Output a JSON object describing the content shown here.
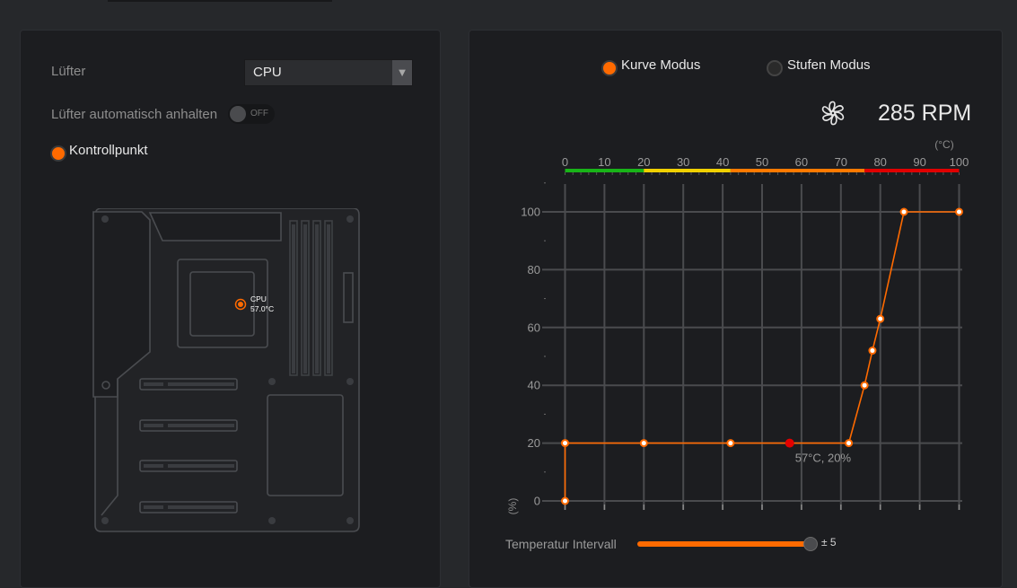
{
  "left": {
    "fan_label": "Lüfter",
    "fan_select_value": "CPU",
    "autostop_label": "Lüfter automatisch anhalten",
    "autostop_state": "OFF",
    "checkpoint_label": "Kontrollpunkt",
    "sensor": {
      "name": "CPU",
      "temp": "57.0°C"
    }
  },
  "right": {
    "mode_curve": "Kurve Modus",
    "mode_step": "Stufen Modus",
    "selected_mode": "Kurve Modus",
    "rpm": "285 RPM",
    "interval_label": "Temperatur Intervall",
    "interval_value": "± 5"
  },
  "chart_data": {
    "type": "line",
    "x_unit": "(°C)",
    "y_unit": "(%)",
    "xlim": [
      0,
      100
    ],
    "ylim": [
      0,
      100
    ],
    "x_ticks": [
      0,
      10,
      20,
      30,
      40,
      50,
      60,
      70,
      80,
      90,
      100
    ],
    "y_ticks": [
      0,
      20,
      40,
      60,
      80,
      100
    ],
    "grid": true,
    "points": [
      {
        "x": 0,
        "y": 0
      },
      {
        "x": 0,
        "y": 20
      },
      {
        "x": 20,
        "y": 20
      },
      {
        "x": 42,
        "y": 20
      },
      {
        "x": 72,
        "y": 20
      },
      {
        "x": 76,
        "y": 40
      },
      {
        "x": 78,
        "y": 52
      },
      {
        "x": 80,
        "y": 63
      },
      {
        "x": 86,
        "y": 100
      },
      {
        "x": 100,
        "y": 100
      }
    ],
    "current": {
      "x": 57,
      "y": 20,
      "label": "57°C, 20%"
    },
    "temp_bar_colors": [
      "#18b418",
      "#f0d000",
      "#ff7a00",
      "#e00000"
    ],
    "line_color": "#ff6a00",
    "current_color": "#e30000"
  }
}
